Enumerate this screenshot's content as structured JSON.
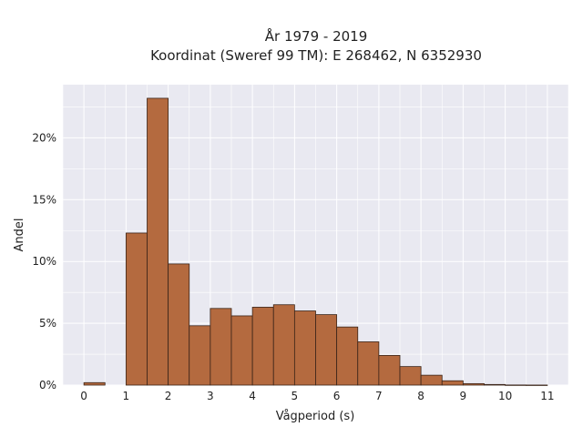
{
  "chart_data": {
    "type": "bar",
    "title": "År 1979 - 2019",
    "subtitle": "Koordinat (Sweref 99 TM): E 268462, N 6352930",
    "xlabel": "Vågperiod (s)",
    "ylabel": "Andel",
    "xlim": [
      -0.5,
      11.5
    ],
    "ylim": [
      0,
      24.3
    ],
    "bin_width": 0.5,
    "bin_starts": [
      0,
      0.5,
      1,
      1.5,
      2,
      2.5,
      3,
      3.5,
      4,
      4.5,
      5,
      5.5,
      6,
      6.5,
      7,
      7.5,
      8,
      8.5,
      9,
      9.5,
      10,
      10.5
    ],
    "values": [
      0.2,
      0,
      12.3,
      23.2,
      9.8,
      4.8,
      6.2,
      5.6,
      6.3,
      6.5,
      6.0,
      5.7,
      4.7,
      3.5,
      2.4,
      1.5,
      0.8,
      0.35,
      0.12,
      0.05,
      0.01,
      0.005
    ],
    "x_ticks": [
      "0",
      "1",
      "2",
      "3",
      "4",
      "5",
      "6",
      "7",
      "8",
      "9",
      "10",
      "11"
    ],
    "y_ticks": [
      "0%",
      "5%",
      "10%",
      "15%",
      "20%"
    ],
    "colors": {
      "bar_fill": "#b46a3f",
      "bar_edge": "#3a2418",
      "plot_bg": "#e9e9f1",
      "grid": "#ffffff"
    },
    "grid": true,
    "legend": null
  }
}
